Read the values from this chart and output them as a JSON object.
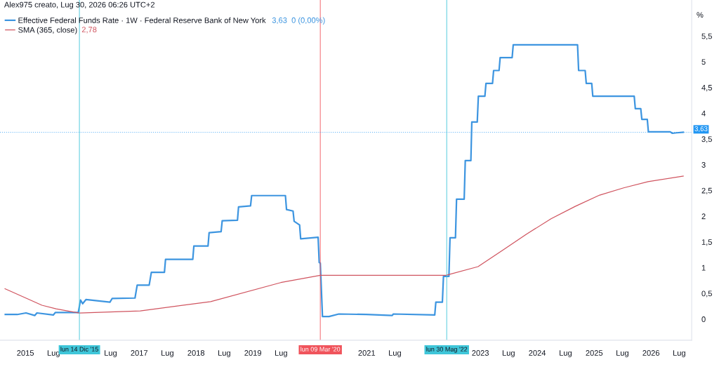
{
  "chart_data": {
    "type": "line",
    "subtitle": "Alex975 creato, Lug 30, 2026 06:26 UTC+2",
    "ylabel": "%",
    "series": [
      {
        "name": "Effective Federal Funds Rate · 1W · Federal Reserve Bank of New York",
        "color": "#3d95e0",
        "x": [
          "2014-08-25",
          "2014-11-10",
          "2015-01-05",
          "2015-03-02",
          "2015-03-16",
          "2015-06-29",
          "2015-07-13",
          "2015-12-07",
          "2015-12-21",
          "2016-01-04",
          "2016-01-25",
          "2016-06-27",
          "2016-07-11",
          "2016-12-05",
          "2016-12-19",
          "2017-03-06",
          "2017-03-20",
          "2017-06-12",
          "2017-06-19",
          "2017-12-11",
          "2017-12-18",
          "2018-03-19",
          "2018-03-26",
          "2018-06-11",
          "2018-06-18",
          "2018-09-24",
          "2018-10-01",
          "2018-12-17",
          "2018-12-24",
          "2019-07-29",
          "2019-08-05",
          "2019-09-16",
          "2019-09-23",
          "2019-10-28",
          "2019-11-04",
          "2020-02-24",
          "2020-03-02",
          "2020-03-09",
          "2020-03-23",
          "2020-05-04",
          "2020-07-06",
          "2020-12-28",
          "2021-06-14",
          "2021-06-21",
          "2022-03-14",
          "2022-03-21",
          "2022-05-02",
          "2022-05-09",
          "2022-06-13",
          "2022-06-20",
          "2022-07-25",
          "2022-08-01",
          "2022-09-19",
          "2022-09-26",
          "2022-11-01",
          "2022-11-07",
          "2022-12-12",
          "2022-12-19",
          "2023-01-30",
          "2023-02-06",
          "2023-03-20",
          "2023-03-27",
          "2023-05-01",
          "2023-05-08",
          "2023-07-24",
          "2023-07-31",
          "2024-09-16",
          "2024-09-23",
          "2024-11-04",
          "2024-11-11",
          "2024-12-16",
          "2024-12-23",
          "2025-09-15",
          "2025-09-22",
          "2025-10-27",
          "2025-11-03",
          "2025-12-08",
          "2025-12-15",
          "2026-05-04",
          "2026-05-18",
          "2026-06-15",
          "2026-07-27"
        ],
        "values": [
          0.09,
          0.09,
          0.12,
          0.07,
          0.12,
          0.08,
          0.13,
          0.13,
          0.37,
          0.3,
          0.38,
          0.33,
          0.4,
          0.41,
          0.66,
          0.66,
          0.91,
          0.91,
          1.16,
          1.16,
          1.42,
          1.42,
          1.68,
          1.7,
          1.91,
          1.92,
          2.18,
          2.2,
          2.4,
          2.4,
          2.13,
          2.1,
          1.9,
          1.83,
          1.56,
          1.59,
          1.1,
          1.09,
          0.05,
          0.05,
          0.1,
          0.09,
          0.07,
          0.1,
          0.08,
          0.33,
          0.33,
          0.83,
          0.83,
          1.58,
          1.58,
          2.33,
          2.33,
          3.08,
          3.08,
          3.83,
          3.83,
          4.33,
          4.33,
          4.58,
          4.58,
          4.83,
          4.83,
          5.08,
          5.08,
          5.33,
          5.33,
          4.83,
          4.83,
          4.58,
          4.58,
          4.33,
          4.33,
          4.09,
          4.09,
          3.88,
          3.88,
          3.64,
          3.64,
          3.61,
          3.62,
          3.63
        ]
      },
      {
        "name": "SMA (365, close)",
        "color": "#d0545f",
        "x": [
          "2014-08-23",
          "2015-01-19",
          "2015-04-17",
          "2015-07-17",
          "2015-10-16",
          "2015-12-14",
          "2017-01-08",
          "2018-04-05",
          "2019-06-29",
          "2020-03-09",
          "2022-05-25",
          "2022-12-17",
          "2023-05-25",
          "2023-10-24",
          "2024-03-30",
          "2024-09-01",
          "2025-02-05",
          "2025-07-09",
          "2025-12-13",
          "2026-07-27"
        ],
        "values": [
          0.59,
          0.39,
          0.27,
          0.2,
          0.15,
          0.12,
          0.16,
          0.34,
          0.71,
          0.85,
          0.85,
          1.02,
          1.34,
          1.65,
          1.95,
          2.19,
          2.41,
          2.55,
          2.67,
          2.78
        ]
      }
    ],
    "annotations": [
      "3,63  0 (0,00%)",
      "2,78"
    ],
    "legend": "top left",
    "xlim": [
      "2014-07-22",
      "2026-09-19"
    ],
    "xticks": [
      {
        "value": "2015-01-01",
        "label": "2015"
      },
      {
        "value": "2015-07-01",
        "label": "Lug"
      },
      {
        "value": "2016-07-01",
        "label": "Lug"
      },
      {
        "value": "2017-01-01",
        "label": "2017"
      },
      {
        "value": "2017-07-01",
        "label": "Lug"
      },
      {
        "value": "2018-01-01",
        "label": "2018"
      },
      {
        "value": "2018-07-01",
        "label": "Lug"
      },
      {
        "value": "2019-01-01",
        "label": "2019"
      },
      {
        "value": "2019-07-01",
        "label": "Lug"
      },
      {
        "value": "2021-01-01",
        "label": "2021"
      },
      {
        "value": "2021-07-01",
        "label": "Lug"
      },
      {
        "value": "2023-01-01",
        "label": "2023"
      },
      {
        "value": "2023-07-01",
        "label": "Lug"
      },
      {
        "value": "2024-01-01",
        "label": "2024"
      },
      {
        "value": "2024-07-01",
        "label": "Lug"
      },
      {
        "value": "2025-01-01",
        "label": "2025"
      },
      {
        "value": "2025-07-01",
        "label": "Lug"
      },
      {
        "value": "2026-01-01",
        "label": "2026"
      },
      {
        "value": "2026-07-01",
        "label": "Lug"
      }
    ],
    "ylim": [
      -0.41,
      6.2
    ],
    "yticks": [
      0,
      {
        "value": 0.5,
        "label": "0,5"
      },
      1,
      {
        "value": 1.5,
        "label": "1,5"
      },
      2,
      {
        "value": 2.5,
        "label": "2,5"
      },
      3,
      {
        "value": 3.5,
        "label": "3,5"
      },
      4,
      {
        "value": 4.5,
        "label": "4,5"
      },
      5,
      {
        "value": 5.5,
        "label": "5,5"
      }
    ],
    "ref_lines": [
      {
        "axis": "x",
        "value": "2015-12-14",
        "label": "lun 14 Dic '15",
        "color": "#3fc6d9",
        "line_style": "solid"
      },
      {
        "axis": "x",
        "value": "2020-03-09",
        "label": "lun 09 Mar '20",
        "color": "#f0545c",
        "line_style": "solid"
      },
      {
        "axis": "x",
        "value": "2022-05-30",
        "label": "lun 30 Mag '22",
        "color": "#3fc6d9",
        "line_style": "solid"
      },
      {
        "axis": "y",
        "value": 3.63,
        "label": "3,63",
        "color": "#2196f3",
        "line_style": "dotted"
      }
    ]
  }
}
